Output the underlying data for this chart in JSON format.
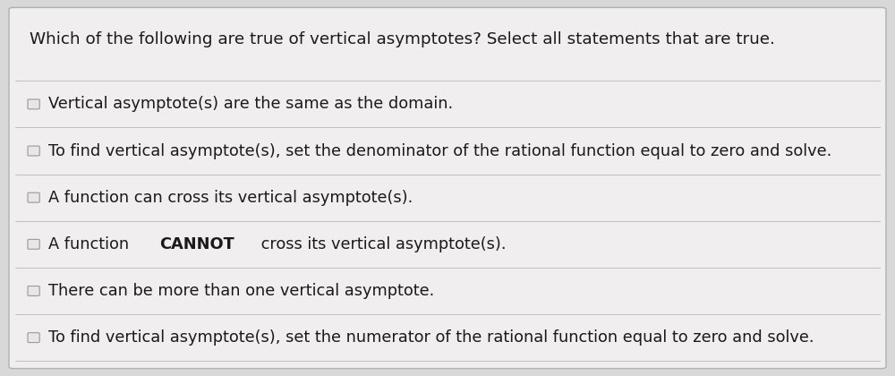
{
  "title": "Which of the following are true of vertical asymptotes? Select all statements that are true.",
  "options": [
    "Vertical asymptote(s) are the same as the domain.",
    "To find vertical asymptote(s), set the denominator of the rational function equal to zero and solve.",
    "A function can cross its vertical asymptote(s).",
    "A function CANNOT cross its vertical asymptote(s).",
    "There can be more than one vertical asymptote.",
    "To find vertical asymptote(s), set the numerator of the rational function equal to zero and solve."
  ],
  "bg_color": "#d8d8d8",
  "card_color": "#f0eeee",
  "border_color": "#b0b0b0",
  "title_fontsize": 13.2,
  "option_fontsize": 12.8,
  "text_color": "#1a1a1a",
  "checkbox_color": "#e8e6e6",
  "checkbox_border": "#999999",
  "divider_color": "#c0bebe"
}
